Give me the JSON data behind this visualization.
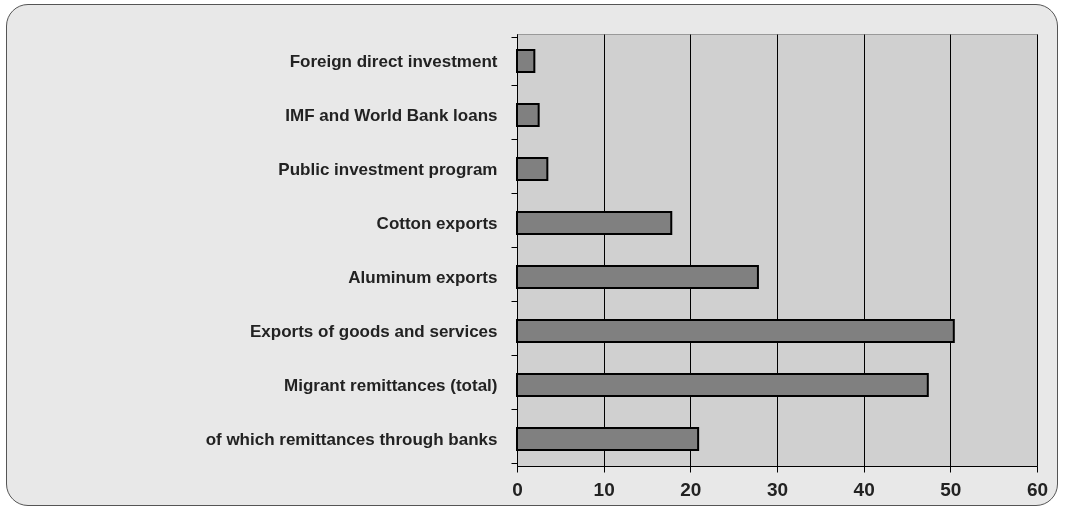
{
  "chart_data": {
    "type": "bar",
    "orientation": "horizontal",
    "categories": [
      "Foreign direct investment",
      "IMF and World Bank loans",
      "Public investment program",
      "Cotton exports",
      "Aluminum exports",
      "Exports of goods and services",
      "Migrant remittances (total)",
      "of which remittances through banks"
    ],
    "values": [
      2.0,
      2.5,
      3.5,
      17.8,
      27.8,
      50.4,
      47.4,
      20.9
    ],
    "color": "#808080",
    "xlim": [
      0,
      60
    ],
    "xticks": [
      0,
      10,
      20,
      30,
      40,
      50,
      60
    ],
    "grid": "x"
  }
}
